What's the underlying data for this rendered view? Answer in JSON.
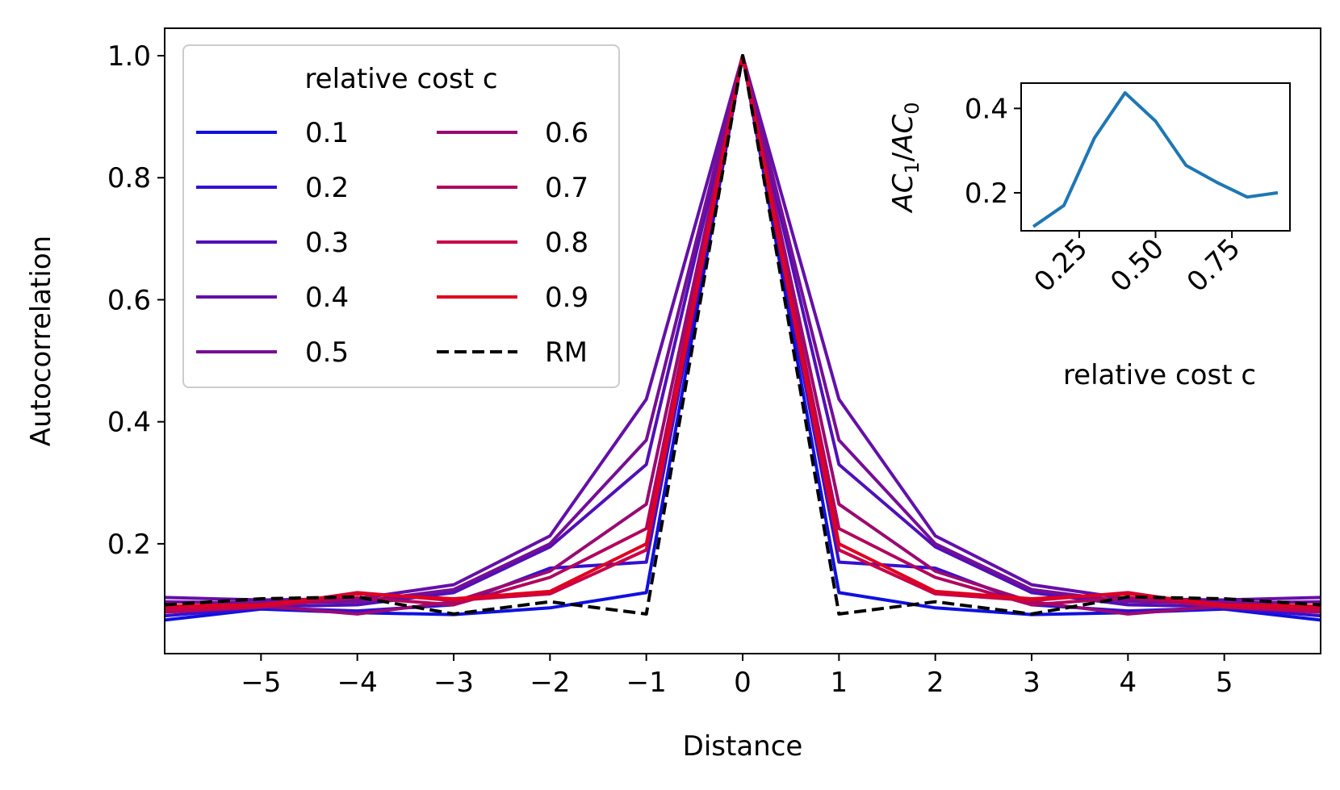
{
  "colors": {
    "background": "#ffffff",
    "axis": "#000000",
    "legend_border": "#cccccc",
    "inset_line": "#1f77b4",
    "rm_line": "#000000"
  },
  "chart_data": [
    {
      "type": "line",
      "title": "",
      "xlabel": "Distance",
      "ylabel": "Autocorrelation",
      "xlim": [
        -6,
        6
      ],
      "ylim": [
        0.02,
        1.045
      ],
      "x": [
        -6,
        -5,
        -4,
        -3,
        -2,
        -1,
        0,
        1,
        2,
        3,
        4,
        5,
        6
      ],
      "xticks": [
        -5,
        -4,
        -3,
        -2,
        -1,
        0,
        1,
        2,
        3,
        4,
        5
      ],
      "xtick_labels": [
        "−5",
        "−4",
        "−3",
        "−2",
        "−1",
        "0",
        "1",
        "2",
        "3",
        "4",
        "5"
      ],
      "yticks": [
        0.2,
        0.4,
        0.6,
        0.8,
        1.0
      ],
      "ytick_labels": [
        "0.2",
        "0.4",
        "0.6",
        "0.8",
        "1.0"
      ],
      "legend": {
        "title": "relative cost c",
        "placement": "top-left",
        "columns": 2
      },
      "series": [
        {
          "name": "0.1",
          "color": "#1010e0",
          "dashed": false,
          "values": [
            0.075,
            0.093,
            0.087,
            0.084,
            0.095,
            0.12,
            1.0,
            0.12,
            0.095,
            0.084,
            0.087,
            0.093,
            0.075
          ]
        },
        {
          "name": "0.2",
          "color": "#3410d2",
          "dashed": false,
          "values": [
            0.082,
            0.095,
            0.09,
            0.1,
            0.16,
            0.17,
            1.0,
            0.17,
            0.16,
            0.1,
            0.09,
            0.095,
            0.082
          ]
        },
        {
          "name": "0.3",
          "color": "#5010b8",
          "dashed": false,
          "values": [
            0.09,
            0.097,
            0.1,
            0.12,
            0.195,
            0.33,
            1.0,
            0.33,
            0.195,
            0.12,
            0.1,
            0.097,
            0.09
          ]
        },
        {
          "name": "0.4",
          "color": "#6410a8",
          "dashed": false,
          "values": [
            0.112,
            0.108,
            0.11,
            0.133,
            0.213,
            0.437,
            1.0,
            0.437,
            0.213,
            0.133,
            0.11,
            0.108,
            0.112
          ]
        },
        {
          "name": "0.5",
          "color": "#760e96",
          "dashed": false,
          "values": [
            0.105,
            0.103,
            0.105,
            0.125,
            0.2,
            0.37,
            1.0,
            0.37,
            0.2,
            0.125,
            0.105,
            0.103,
            0.105
          ]
        },
        {
          "name": "0.6",
          "color": "#9a0a72",
          "dashed": false,
          "values": [
            0.095,
            0.098,
            0.085,
            0.105,
            0.155,
            0.265,
            1.0,
            0.265,
            0.155,
            0.105,
            0.085,
            0.098,
            0.095
          ]
        },
        {
          "name": "0.7",
          "color": "#b0065e",
          "dashed": false,
          "values": [
            0.088,
            0.096,
            0.112,
            0.1,
            0.145,
            0.225,
            1.0,
            0.225,
            0.145,
            0.1,
            0.112,
            0.096,
            0.088
          ]
        },
        {
          "name": "0.8",
          "color": "#c80448",
          "dashed": false,
          "values": [
            0.092,
            0.097,
            0.12,
            0.107,
            0.118,
            0.19,
            1.0,
            0.19,
            0.118,
            0.107,
            0.12,
            0.097,
            0.092
          ]
        },
        {
          "name": "0.9",
          "color": "#e00020",
          "dashed": false,
          "values": [
            0.098,
            0.1,
            0.118,
            0.11,
            0.122,
            0.2,
            1.0,
            0.2,
            0.122,
            0.11,
            0.118,
            0.1,
            0.098
          ]
        },
        {
          "name": "RM",
          "color": "#000000",
          "dashed": true,
          "values": [
            0.1,
            0.11,
            0.113,
            0.085,
            0.105,
            0.085,
            1.0,
            0.085,
            0.105,
            0.085,
            0.113,
            0.11,
            0.1
          ]
        }
      ]
    },
    {
      "type": "line",
      "title": "",
      "xlabel": "relative cost c",
      "ylabel": "AC1/AC0",
      "xlim": [
        0.06,
        0.94
      ],
      "ylim": [
        0.11,
        0.46
      ],
      "x": [
        0.1,
        0.2,
        0.3,
        0.4,
        0.5,
        0.6,
        0.7,
        0.8,
        0.9
      ],
      "values": [
        0.12,
        0.17,
        0.33,
        0.437,
        0.37,
        0.265,
        0.225,
        0.19,
        0.2
      ],
      "xticks": [
        0.25,
        0.5,
        0.75
      ],
      "xtick_labels": [
        "0.25",
        "0.50",
        "0.75"
      ],
      "yticks": [
        0.2,
        0.4
      ],
      "ytick_labels": [
        "0.2",
        "0.4"
      ],
      "ylabel_parts": {
        "a": "AC",
        "a_sub": "1",
        "slash": "/",
        "b": "AC",
        "b_sub": "0"
      }
    }
  ]
}
